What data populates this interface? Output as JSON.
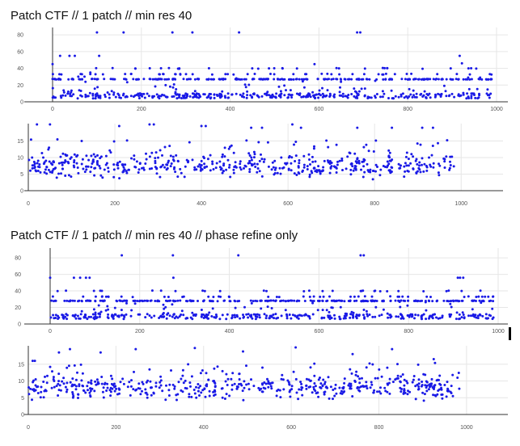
{
  "sections": [
    {
      "title": "Patch CTF // 1 patch // min res 40"
    },
    {
      "title": "Patch CTF // 1 patch // min res 40 // phase refine only"
    }
  ],
  "colors": {
    "points": "#1a1ae6",
    "grid": "#e6e6e6",
    "axis": "#333333"
  },
  "chart_data": [
    {
      "type": "scatter",
      "title": "",
      "xlabel": "",
      "ylabel": "",
      "xlim": [
        0,
        1000
      ],
      "ylim": [
        0,
        85
      ],
      "grid": true,
      "x_ticks": [
        0,
        200,
        400,
        600,
        800,
        1000
      ],
      "y_ticks": [
        0,
        20,
        40,
        60,
        80
      ],
      "description_values": {
        "x_range": [
          0,
          990
        ],
        "bands": [
          7,
          27,
          33,
          40
        ],
        "points": [
          [
            0,
            45
          ],
          [
            17,
            55
          ],
          [
            38,
            55
          ],
          [
            50,
            55
          ],
          [
            58,
            30
          ],
          [
            72,
            30
          ],
          [
            85,
            35
          ],
          [
            100,
            83
          ],
          [
            105,
            55
          ],
          [
            160,
            83
          ],
          [
            270,
            83
          ],
          [
            315,
            83
          ],
          [
            420,
            83
          ],
          [
            510,
            18
          ],
          [
            590,
            45
          ],
          [
            686,
            83
          ],
          [
            693,
            83
          ],
          [
            917,
            55
          ],
          [
            922,
            46
          ],
          [
            936,
            29
          ],
          [
            963,
            29
          ]
        ]
      }
    },
    {
      "type": "scatter",
      "title": "",
      "xlabel": "",
      "ylabel": "",
      "xlim": [
        0,
        1050
      ],
      "ylim": [
        0,
        20
      ],
      "grid": true,
      "x_ticks": [
        0,
        200,
        400,
        600,
        800,
        1000
      ],
      "y_ticks": [
        0,
        5,
        10,
        15
      ],
      "description_values": {
        "x_range": [
          0,
          985
        ],
        "center": 7.5,
        "points": [
          [
            20,
            20
          ],
          [
            50,
            20
          ],
          [
            210,
            19.5
          ],
          [
            280,
            20
          ],
          [
            290,
            20
          ],
          [
            400,
            19.5
          ],
          [
            410,
            19.5
          ],
          [
            515,
            19
          ],
          [
            540,
            19
          ],
          [
            610,
            20
          ],
          [
            630,
            19
          ],
          [
            760,
            19
          ],
          [
            840,
            19
          ],
          [
            910,
            19
          ],
          [
            935,
            19
          ]
        ]
      }
    },
    {
      "type": "scatter",
      "title": "",
      "xlabel": "",
      "ylabel": "",
      "xlim": [
        0,
        1000
      ],
      "ylim": [
        0,
        85
      ],
      "grid": true,
      "x_ticks": [
        0,
        200,
        400,
        600,
        800,
        1000
      ],
      "y_ticks": [
        0,
        20,
        40,
        60,
        80
      ],
      "description_values": {
        "x_range": [
          0,
          990
        ],
        "bands": [
          9,
          28,
          33,
          40
        ],
        "points": [
          [
            0,
            56
          ],
          [
            53,
            56
          ],
          [
            67,
            56
          ],
          [
            80,
            56
          ],
          [
            88,
            56
          ],
          [
            160,
            83
          ],
          [
            274,
            83
          ],
          [
            275,
            56
          ],
          [
            420,
            83
          ],
          [
            693,
            83
          ],
          [
            700,
            83
          ],
          [
            910,
            56
          ],
          [
            915,
            56
          ],
          [
            922,
            56
          ]
        ]
      }
    },
    {
      "type": "scatter",
      "title": "",
      "xlabel": "",
      "ylabel": "",
      "xlim": [
        0,
        1050
      ],
      "ylim": [
        0,
        20
      ],
      "grid": true,
      "x_ticks": [
        0,
        200,
        400,
        600,
        800,
        1000
      ],
      "y_ticks": [
        0,
        5,
        10,
        15
      ],
      "description_values": {
        "x_range": [
          0,
          985
        ],
        "center": 8,
        "points": [
          [
            10,
            16
          ],
          [
            15,
            16
          ],
          [
            70,
            18.5
          ],
          [
            95,
            19.5
          ],
          [
            165,
            18.5
          ],
          [
            245,
            19.5
          ],
          [
            380,
            19.8
          ],
          [
            490,
            18.8
          ],
          [
            610,
            20
          ],
          [
            740,
            18
          ],
          [
            830,
            19.5
          ],
          [
            925,
            16.5
          ]
        ]
      }
    }
  ]
}
